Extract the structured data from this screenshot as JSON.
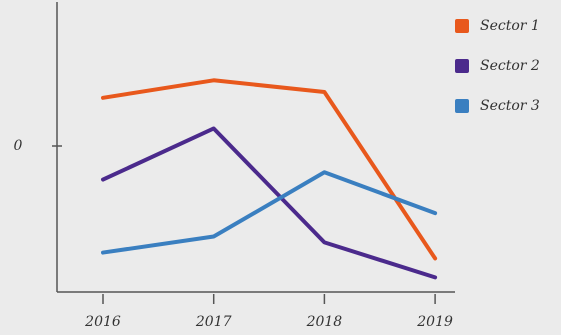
{
  "chart_data": {
    "type": "line",
    "categories": [
      "2016",
      "2017",
      "2018",
      "2019"
    ],
    "series": [
      {
        "name": "Sector 1",
        "color": "#e8581c",
        "values": [
          3.3,
          4.5,
          3.7,
          -7.7
        ]
      },
      {
        "name": "Sector 2",
        "color": "#4b2a8c",
        "values": [
          -2.3,
          1.2,
          -6.6,
          -9.0
        ]
      },
      {
        "name": "Sector 3",
        "color": "#3a7fc0",
        "values": [
          -7.3,
          -6.2,
          -1.8,
          -4.6
        ]
      }
    ],
    "ylim": [
      -10,
      10
    ],
    "yticks": [
      0
    ],
    "legend": "top-right"
  }
}
